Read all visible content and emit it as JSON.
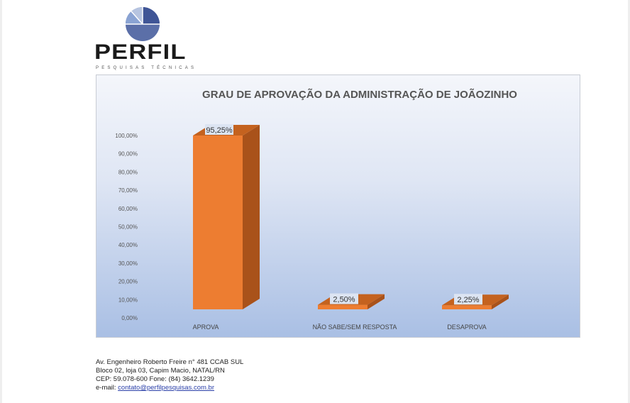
{
  "logo": {
    "name": "PERFIL",
    "tagline": "PESQUISAS TÉCNICAS"
  },
  "chart_data": {
    "type": "bar",
    "title": "GRAU DE APROVAÇÃO DA ADMINISTRAÇÃO DE JOÃOZINHO",
    "categories": [
      "APROVA",
      "NÃO SABE/SEM RESPOSTA",
      "DESAPROVA"
    ],
    "values": [
      95.25,
      2.5,
      2.25
    ],
    "data_labels": [
      "95,25%",
      "2,50%",
      "2,25%"
    ],
    "yticks": [
      "0,00%",
      "10,00%",
      "20,00%",
      "30,00%",
      "40,00%",
      "50,00%",
      "60,00%",
      "70,00%",
      "80,00%",
      "90,00%",
      "100,00%"
    ],
    "ylim": [
      0,
      100
    ],
    "xlabel": "",
    "ylabel": "",
    "grid": false,
    "legend": "none",
    "bar_color": "#ed7d31"
  },
  "footer": {
    "line1": "Av. Engenheiro Roberto Freire n° 481 CCAB SUL",
    "line2": "Bloco 02, loja 03, Capim Macio, NATAL/RN",
    "line3": "CEP: 59.078-600 Fone: (84) 3642.1239",
    "email_label": "e-mail: ",
    "email": "contato@perfilpesquisas.com.br"
  }
}
